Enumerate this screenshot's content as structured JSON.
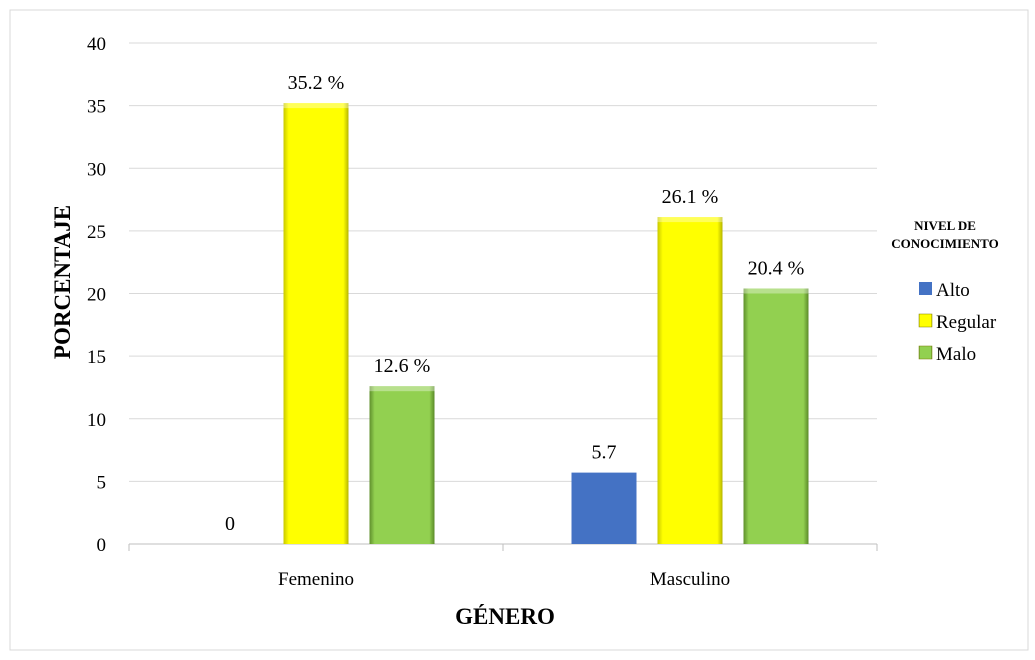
{
  "colors": {
    "Alto": "#4472c4",
    "Regular": "#ffff00",
    "Malo": "#92d050"
  },
  "chart_data": {
    "type": "bar",
    "categories": [
      "Femenino",
      "Masculino"
    ],
    "series": [
      {
        "name": "Alto",
        "values": [
          0,
          5.7
        ],
        "labels": [
          "0",
          "5.7"
        ]
      },
      {
        "name": "Regular",
        "values": [
          35.2,
          26.1
        ],
        "labels": [
          "35.2 %",
          "26.1 %"
        ]
      },
      {
        "name": "Malo",
        "values": [
          12.6,
          20.4
        ],
        "labels": [
          "12.6 %",
          "20.4 %"
        ]
      }
    ],
    "xlabel": "GÉNERO",
    "ylabel": "PORCENTAJE",
    "ylim": [
      0,
      40
    ],
    "yticks": [
      "0",
      "5",
      "10",
      "15",
      "20",
      "25",
      "30",
      "35",
      "40"
    ],
    "grid": true,
    "legend": {
      "title_lines": [
        "NIVEL DE",
        "CONOCIMIENTO"
      ],
      "placement": "right",
      "items": [
        "Alto",
        "Regular",
        "Malo"
      ]
    }
  }
}
